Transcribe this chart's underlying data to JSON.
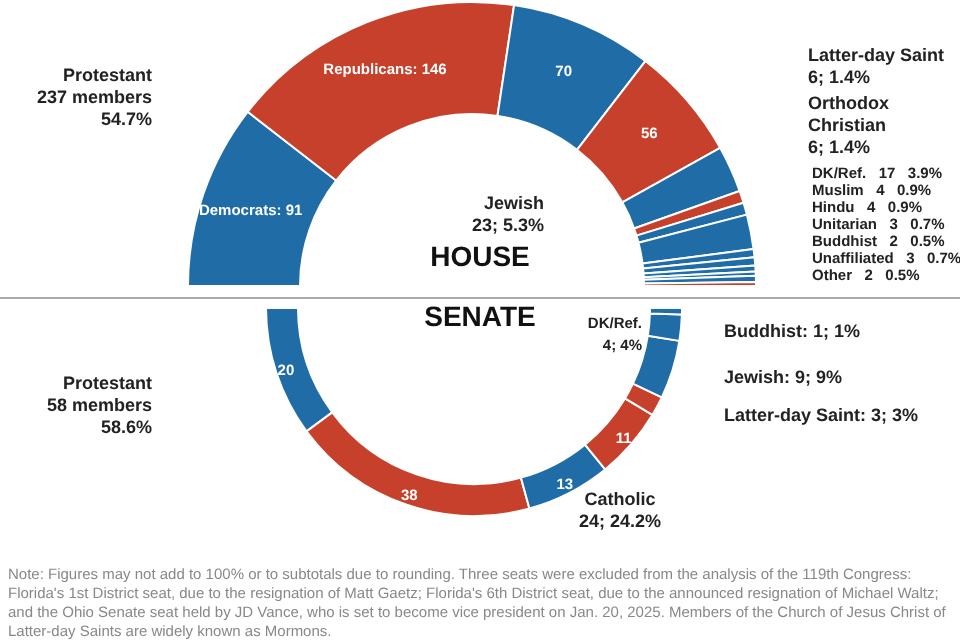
{
  "chart_data": [
    {
      "type": "donut",
      "title": "HOUSE",
      "categories": [
        null,
        null,
        null,
        null,
        null,
        null,
        null,
        null,
        null,
        null,
        null,
        null,
        null,
        null
      ],
      "values": [
        91,
        146,
        70,
        56,
        23,
        6,
        6,
        17,
        4,
        4,
        3,
        2,
        3,
        2
      ],
      "colors": [
        "#1f6ca6",
        "#c7402c",
        "#1f6ca6",
        "#c7402c",
        "#1f6ca6",
        "#c7402c",
        "#1f6ca6",
        "#1f6ca6",
        "#1f6ca6",
        "#1f6ca6",
        "#1f6ca6",
        "#1f6ca6",
        "#1f6ca6",
        "#c7402c"
      ],
      "value_labels": [
        "Democrats: 91",
        "Republicans: 146",
        "70",
        "56",
        null,
        null,
        null,
        null,
        null,
        null,
        null,
        null,
        null,
        null
      ],
      "annotations": [
        "Protestant\n237 members\n54.7%",
        "Latter-day Saint\n6; 1.4%",
        "Orthodox\nChristian\n6; 1.4%",
        "Jewish\n23; 5.3%",
        "DK/Ref.   17   3.9%",
        "Muslim   4   0.9%",
        "Hindu   4   0.9%",
        "Unitarian   3   0.7%",
        "Buddhist   2   0.5%",
        "Unaffiliated   3   0.7%",
        "Other   2   0.5%"
      ]
    },
    {
      "type": "donut",
      "title": "SENATE",
      "categories": [
        null,
        null,
        null,
        null,
        null,
        null,
        null,
        null
      ],
      "values": [
        20,
        38,
        13,
        11,
        3,
        9,
        4,
        1
      ],
      "colors": [
        "#1f6ca6",
        "#c7402c",
        "#1f6ca6",
        "#c7402c",
        "#c7402c",
        "#1f6ca6",
        "#1f6ca6",
        "#1f6ca6"
      ],
      "value_labels": [
        "20",
        "38",
        "13",
        "11",
        null,
        null,
        null,
        null
      ],
      "annotations": [
        "Protestant\n58 members\n58.6%",
        "DK/Ref.\n4; 4%",
        "Buddhist: 1; 1%",
        "Jewish: 9; 9%",
        "Latter-day Saint: 3; 3%",
        "Catholic\n24; 24.2%",
        "Note: Figures may not add to 100% or to subtotals due to rounding. Three seats were excluded from the analysis of the 119th Congress: Florida's 1st District seat, due to the resignation of Matt Gaetz; Florida's 6th District seat, due to the announced resignation of Michael Waltz; and the Ohio Senate seat held by JD Vance, who is set to become vice president on Jan. 20, 2025. Members of the Church of Jesus Christ of Latter-day Saints are widely known as Mormons."
      ]
    }
  ]
}
